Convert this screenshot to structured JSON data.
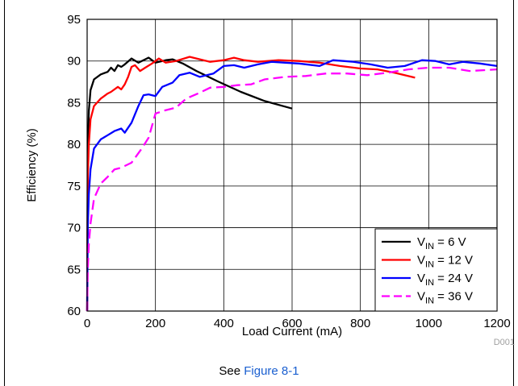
{
  "chart_data": {
    "type": "line",
    "xlabel": "Load Current (mA)",
    "ylabel": "Efficiency (%)",
    "xlim": [
      0,
      1200
    ],
    "ylim": [
      60,
      95
    ],
    "x_ticks": [
      0,
      200,
      400,
      600,
      800,
      1000,
      1200
    ],
    "y_ticks": [
      60,
      65,
      70,
      75,
      80,
      85,
      90,
      95
    ],
    "grid": true,
    "legend_position": "bottom-right",
    "figure_id": "D001",
    "series": [
      {
        "name_main": "V",
        "name_sub": "IN",
        "name_rest": " = 6 V",
        "color": "#000000",
        "dash": "none",
        "points": [
          [
            0,
            60
          ],
          [
            2,
            79
          ],
          [
            5,
            84
          ],
          [
            10,
            86.5
          ],
          [
            20,
            87.8
          ],
          [
            40,
            88.4
          ],
          [
            60,
            88.7
          ],
          [
            70,
            89.2
          ],
          [
            80,
            88.8
          ],
          [
            90,
            89.5
          ],
          [
            100,
            89.3
          ],
          [
            110,
            89.6
          ],
          [
            130,
            90.3
          ],
          [
            150,
            89.8
          ],
          [
            170,
            90.2
          ],
          [
            180,
            90.4
          ],
          [
            200,
            89.8
          ],
          [
            230,
            90.1
          ],
          [
            250,
            90.2
          ],
          [
            280,
            89.7
          ],
          [
            320,
            88.8
          ],
          [
            380,
            87.6
          ],
          [
            450,
            86.3
          ],
          [
            520,
            85.2
          ],
          [
            600,
            84.3
          ]
        ]
      },
      {
        "name_main": "V",
        "name_sub": "IN",
        "name_rest": " = 12 V",
        "color": "#ff0000",
        "dash": "none",
        "points": [
          [
            0,
            60
          ],
          [
            2,
            76
          ],
          [
            5,
            80
          ],
          [
            10,
            83
          ],
          [
            20,
            84.6
          ],
          [
            40,
            85.5
          ],
          [
            60,
            86.1
          ],
          [
            70,
            86.3
          ],
          [
            90,
            86.9
          ],
          [
            100,
            86.6
          ],
          [
            110,
            87.2
          ],
          [
            120,
            88.1
          ],
          [
            130,
            89.3
          ],
          [
            140,
            89.5
          ],
          [
            155,
            88.8
          ],
          [
            170,
            89.2
          ],
          [
            190,
            89.7
          ],
          [
            210,
            90.3
          ],
          [
            230,
            89.8
          ],
          [
            260,
            90
          ],
          [
            300,
            90.5
          ],
          [
            330,
            90.2
          ],
          [
            360,
            89.9
          ],
          [
            400,
            90.1
          ],
          [
            430,
            90.4
          ],
          [
            460,
            90.1
          ],
          [
            500,
            89.9
          ],
          [
            560,
            90.1
          ],
          [
            620,
            90
          ],
          [
            680,
            89.8
          ],
          [
            740,
            89.4
          ],
          [
            800,
            89.1
          ],
          [
            850,
            89
          ],
          [
            900,
            88.6
          ],
          [
            960,
            88
          ]
        ]
      },
      {
        "name_main": "V",
        "name_sub": "IN",
        "name_rest": " = 24 V",
        "color": "#0000ff",
        "dash": "none",
        "points": [
          [
            0,
            60
          ],
          [
            2,
            70
          ],
          [
            5,
            74
          ],
          [
            10,
            77
          ],
          [
            20,
            79.5
          ],
          [
            40,
            80.6
          ],
          [
            60,
            81.1
          ],
          [
            80,
            81.6
          ],
          [
            100,
            81.9
          ],
          [
            110,
            81.4
          ],
          [
            130,
            82.6
          ],
          [
            150,
            84.6
          ],
          [
            165,
            85.9
          ],
          [
            180,
            86
          ],
          [
            200,
            85.8
          ],
          [
            220,
            86.9
          ],
          [
            250,
            87.4
          ],
          [
            270,
            88.3
          ],
          [
            300,
            88.6
          ],
          [
            330,
            88.1
          ],
          [
            370,
            88.5
          ],
          [
            400,
            89.4
          ],
          [
            430,
            89.5
          ],
          [
            460,
            89.2
          ],
          [
            500,
            89.6
          ],
          [
            540,
            89.9
          ],
          [
            580,
            89.8
          ],
          [
            620,
            89.7
          ],
          [
            680,
            89.4
          ],
          [
            720,
            90.1
          ],
          [
            780,
            89.9
          ],
          [
            830,
            89.6
          ],
          [
            880,
            89.2
          ],
          [
            930,
            89.4
          ],
          [
            980,
            90.1
          ],
          [
            1020,
            90
          ],
          [
            1060,
            89.6
          ],
          [
            1100,
            89.9
          ],
          [
            1150,
            89.7
          ],
          [
            1200,
            89.4
          ]
        ]
      },
      {
        "name_main": "V",
        "name_sub": "IN",
        "name_rest": " = 36 V",
        "color": "#ff00ff",
        "dash": "12,6",
        "points": [
          [
            0,
            60
          ],
          [
            2,
            65
          ],
          [
            5,
            68
          ],
          [
            10,
            70.5
          ],
          [
            20,
            73.5
          ],
          [
            40,
            75.3
          ],
          [
            60,
            76.1
          ],
          [
            80,
            77
          ],
          [
            100,
            77.2
          ],
          [
            130,
            77.8
          ],
          [
            160,
            79.5
          ],
          [
            180,
            80.8
          ],
          [
            200,
            83.7
          ],
          [
            230,
            84.1
          ],
          [
            260,
            84.4
          ],
          [
            290,
            85.5
          ],
          [
            330,
            86.2
          ],
          [
            360,
            86.8
          ],
          [
            400,
            86.9
          ],
          [
            440,
            87.1
          ],
          [
            480,
            87.2
          ],
          [
            520,
            87.8
          ],
          [
            580,
            88.1
          ],
          [
            640,
            88.2
          ],
          [
            700,
            88.5
          ],
          [
            760,
            88.5
          ],
          [
            820,
            88.3
          ],
          [
            880,
            88.6
          ],
          [
            940,
            89
          ],
          [
            1000,
            89.2
          ],
          [
            1060,
            89.2
          ],
          [
            1120,
            88.8
          ],
          [
            1200,
            89
          ]
        ]
      }
    ]
  },
  "caption": {
    "prefix": "See ",
    "link": "Figure 8-1"
  }
}
